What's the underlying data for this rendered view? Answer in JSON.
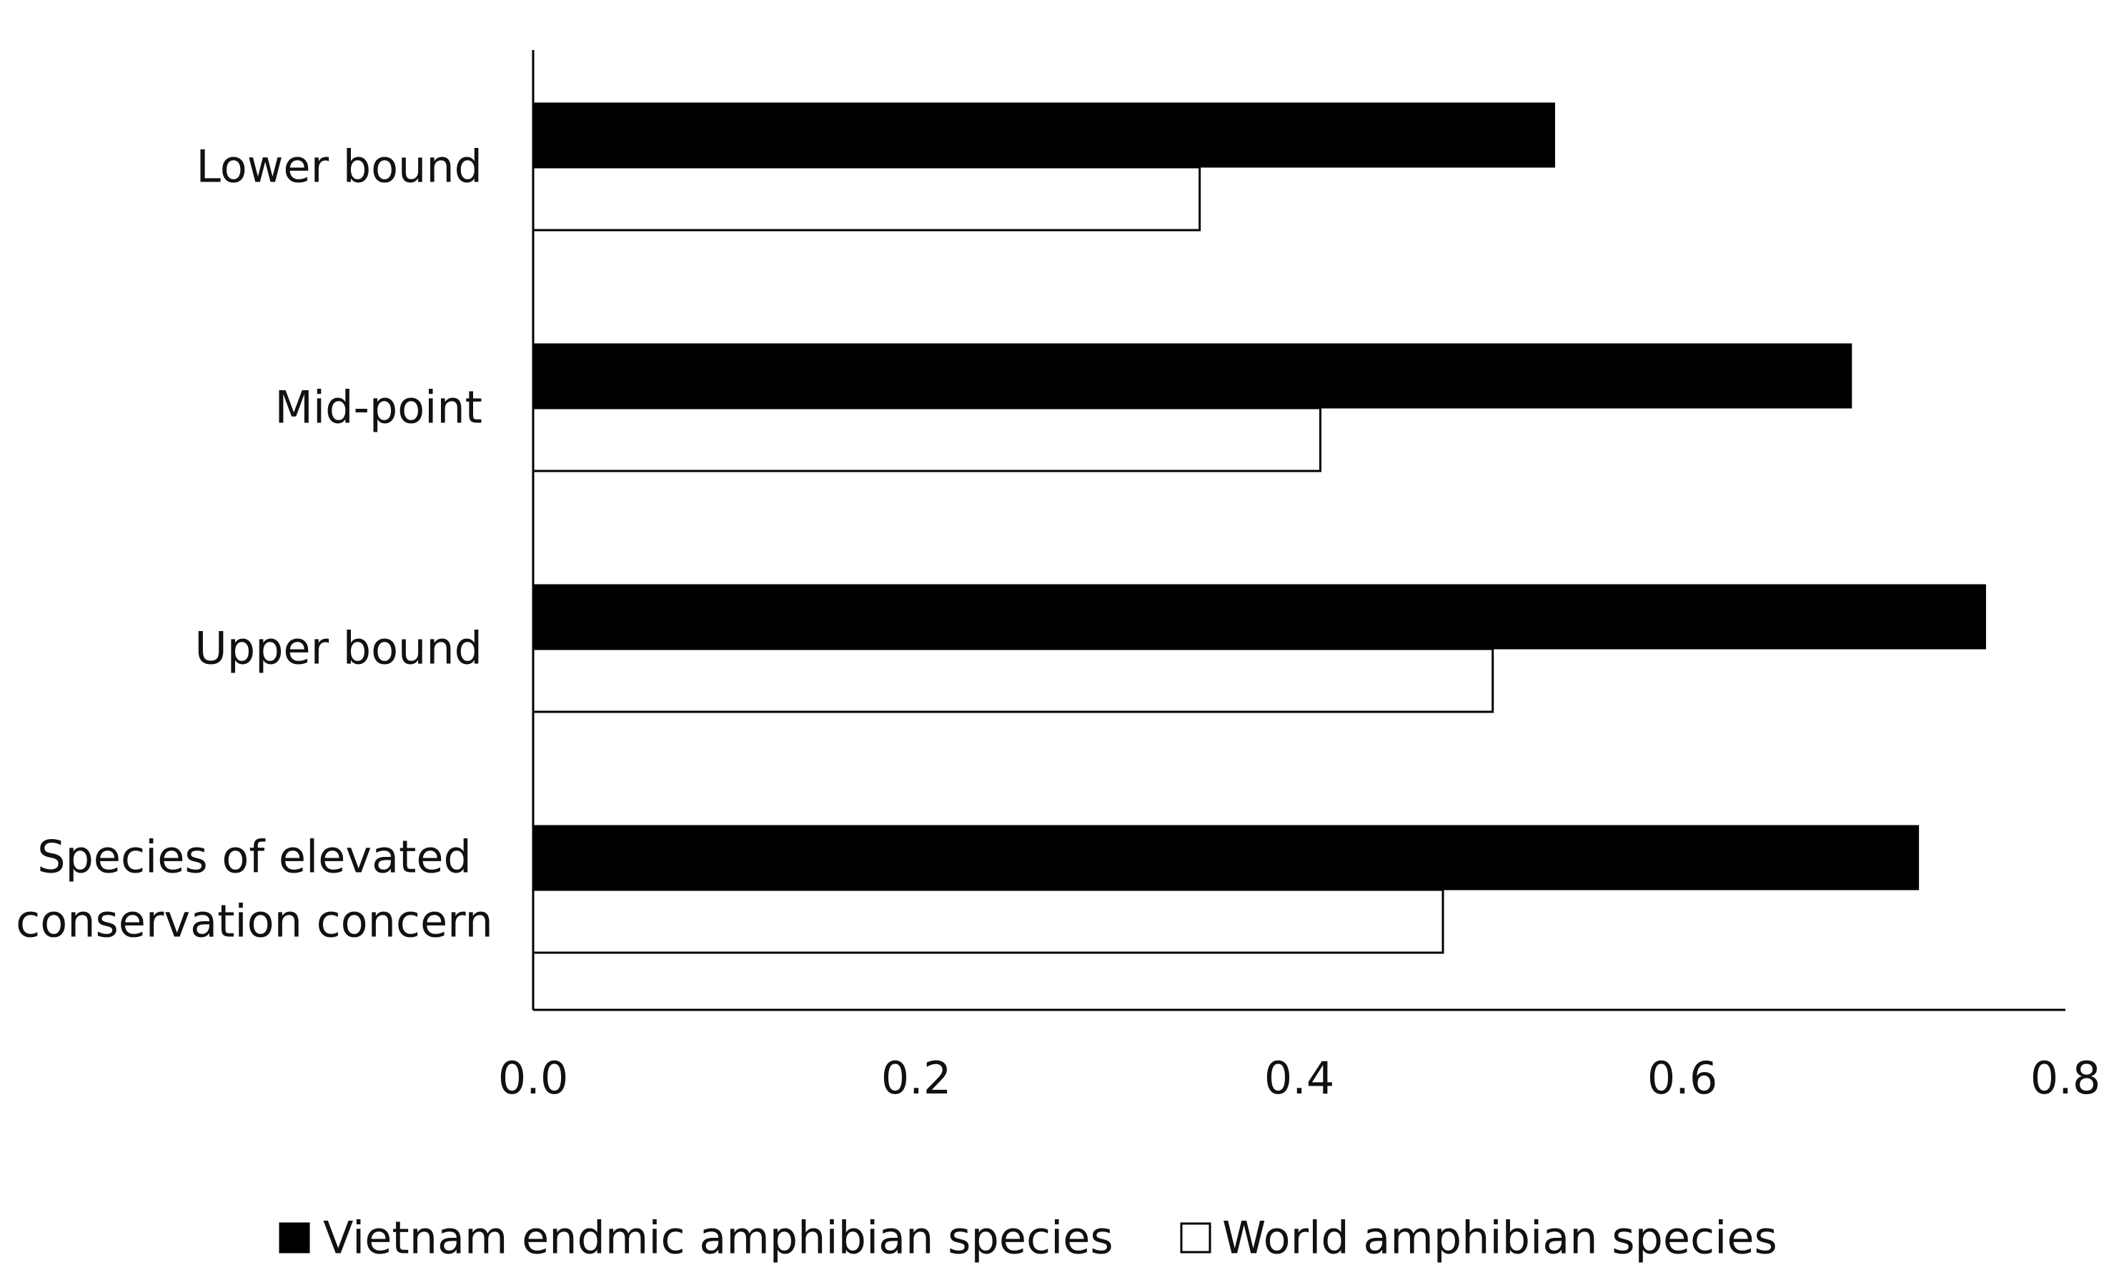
{
  "chart_data": {
    "type": "bar",
    "orientation": "horizontal",
    "title": "",
    "xlabel": "",
    "ylabel": "",
    "xlim": [
      0,
      0.8
    ],
    "xticks": [
      "0.0",
      "0.2",
      "0.4",
      "0.6",
      "0.8"
    ],
    "grid": false,
    "legend_position": "bottom",
    "categories": [
      [
        "Lower bound"
      ],
      [
        "Mid-point"
      ],
      [
        "Upper bound"
      ],
      [
        "Species of elevated",
        "conservation concern"
      ]
    ],
    "series": [
      {
        "name": "Vietnam endmic amphibian species",
        "color": "#000000",
        "values": [
          0.533,
          0.688,
          0.758,
          0.723
        ]
      },
      {
        "name": "World amphibian species",
        "color": "#ffffff",
        "values": [
          0.348,
          0.411,
          0.501,
          0.475
        ]
      }
    ]
  }
}
